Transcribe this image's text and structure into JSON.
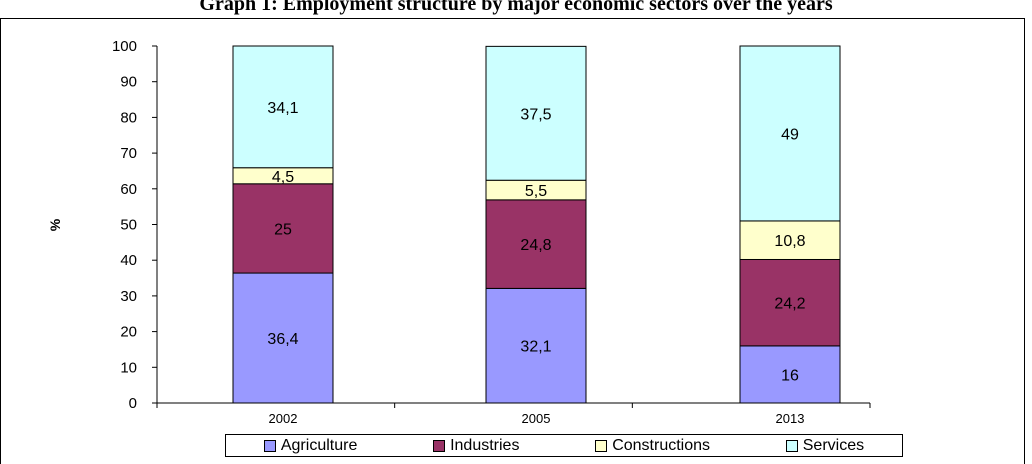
{
  "title": "Graph 1: Employment structure by major economic sectors over the years",
  "chart_data": {
    "type": "bar",
    "stacked": true,
    "categories": [
      "2002",
      "2005",
      "2013"
    ],
    "series": [
      {
        "name": "Agriculture",
        "color": "#9999ff",
        "values": [
          36.4,
          32.1,
          16
        ],
        "labels": [
          "36,4",
          "32,1",
          "16"
        ]
      },
      {
        "name": "Industries",
        "color": "#993366",
        "values": [
          25,
          24.8,
          24.2
        ],
        "labels": [
          "25",
          "24,8",
          "24,2"
        ]
      },
      {
        "name": "Constructions",
        "color": "#ffffcc",
        "values": [
          4.5,
          5.5,
          10.8
        ],
        "labels": [
          "4,5",
          "5,5",
          "10,8"
        ]
      },
      {
        "name": "Services",
        "color": "#ccffff",
        "values": [
          34.1,
          37.5,
          49
        ],
        "labels": [
          "34,1",
          "37,5",
          "49"
        ]
      }
    ],
    "ylabel": "%",
    "ylim": [
      0,
      100
    ],
    "yticks": [
      0,
      10,
      20,
      30,
      40,
      50,
      60,
      70,
      80,
      90,
      100
    ],
    "grid": false,
    "legend_position": "bottom"
  }
}
